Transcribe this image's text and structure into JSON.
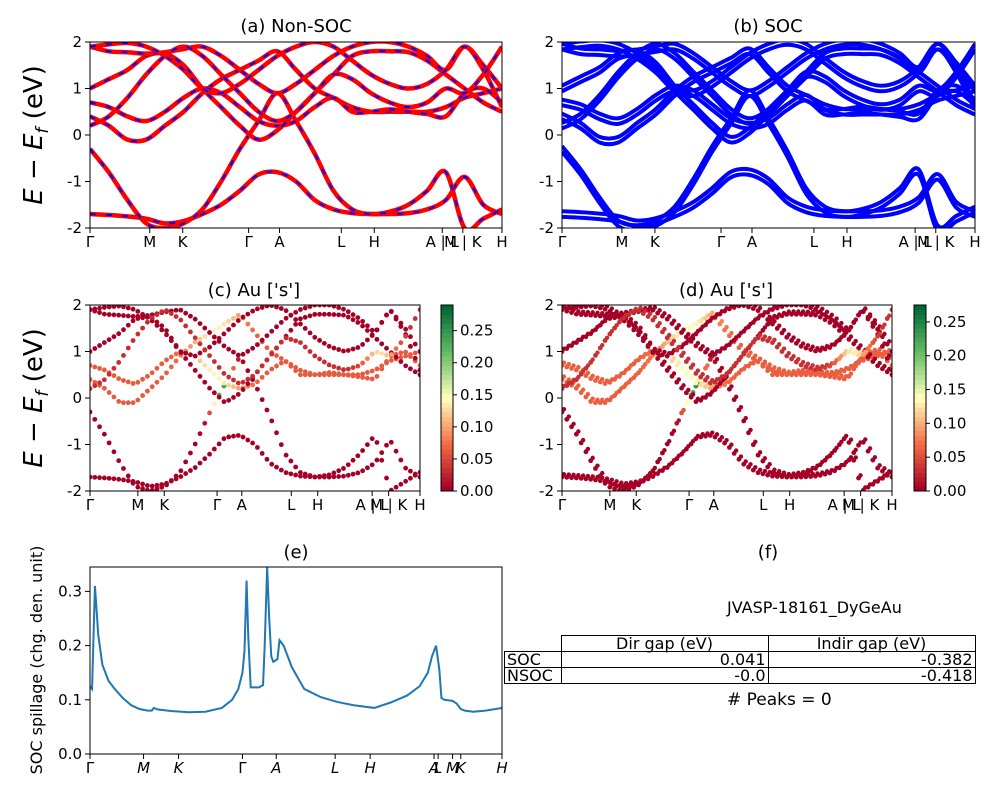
{
  "figure": {
    "ylabel_main": "E − E",
    "ylabel_sub": "f",
    "ylabel_unit": " (eV)",
    "ylabel_e": "SOC spillage (chg. den. unit)"
  },
  "kpath": [
    "Γ",
    "M",
    "K",
    "Γ",
    "A",
    "L",
    "H",
    "A | L",
    "M | K",
    "H"
  ],
  "kpath_positions": [
    0,
    0.145,
    0.225,
    0.385,
    0.46,
    0.61,
    0.69,
    0.855,
    0.905,
    1.0
  ],
  "chart_data": [
    {
      "type": "line",
      "panel": "a",
      "title": "(a) Non-SOC",
      "ylim": [
        -2,
        2
      ],
      "yticks": [
        -2,
        -1,
        0,
        1,
        2
      ],
      "series": [
        {
          "color": "#ff0000",
          "style": "solid",
          "bands": [
            [
              -1.7,
              -1.72,
              -1.75,
              -1.8,
              -1.9,
              -1.85,
              -1.7,
              -1.5,
              -1.2,
              -0.85,
              -0.8,
              -1.0,
              -1.4,
              -1.6,
              -1.68,
              -1.7,
              -1.7,
              -1.68,
              -1.6,
              -1.4,
              -0.9,
              -1.5,
              -1.7
            ],
            [
              -0.3,
              -0.8,
              -1.4,
              -1.9,
              -2.0,
              -1.9,
              -1.6,
              -1.0,
              -0.3,
              0.3,
              0.9,
              0.3,
              -0.4,
              -1.2,
              -1.6,
              -1.7,
              -1.65,
              -1.5,
              -1.2,
              -0.8,
              -2.0,
              -1.8,
              -1.6
            ],
            [
              0.4,
              0.2,
              -0.1,
              -0.1,
              0.2,
              0.5,
              0.9,
              1.2,
              1.4,
              1.6,
              1.8,
              1.4,
              1.0,
              0.8,
              0.6,
              0.5,
              0.5,
              0.5,
              0.5,
              0.6,
              0.8,
              0.9,
              1.0
            ],
            [
              0.7,
              0.6,
              0.4,
              0.3,
              0.5,
              0.8,
              1.0,
              0.9,
              0.6,
              0.3,
              0.2,
              0.3,
              0.6,
              0.8,
              0.5,
              0.5,
              0.55,
              0.5,
              0.45,
              0.4,
              0.9,
              1.0,
              0.7
            ],
            [
              1.0,
              1.2,
              1.4,
              1.7,
              1.75,
              1.5,
              1.0,
              0.6,
              0.2,
              -0.1,
              0.1,
              0.5,
              0.9,
              1.3,
              1.7,
              1.8,
              1.8,
              1.78,
              1.6,
              1.3,
              1.0,
              0.7,
              0.5
            ],
            [
              1.9,
              1.8,
              1.78,
              1.75,
              1.78,
              1.85,
              1.9,
              1.7,
              1.4,
              1.1,
              0.9,
              1.1,
              1.4,
              1.7,
              1.9,
              2.0,
              2.0,
              1.9,
              1.7,
              1.4,
              1.9,
              1.5,
              1.0
            ],
            [
              1.9,
              1.95,
              1.98,
              1.9,
              1.7,
              1.4,
              1.0,
              0.9,
              1.1,
              1.4,
              1.7,
              1.9,
              2.0,
              1.9,
              1.6,
              1.3,
              1.1,
              1.0,
              1.1,
              1.4,
              1.9,
              1.4,
              0.6
            ],
            [
              0.2,
              0.4,
              0.8,
              1.3,
              1.7,
              1.9,
              1.7,
              1.3,
              0.9,
              0.5,
              0.3,
              0.5,
              0.9,
              1.3,
              1.2,
              0.9,
              0.7,
              0.6,
              0.7,
              1.0,
              0.9,
              1.3,
              1.9
            ]
          ]
        },
        {
          "color": "#0000ff",
          "style": "dashed",
          "bands": "same"
        }
      ]
    },
    {
      "type": "line",
      "panel": "b",
      "title": "(b) SOC",
      "ylim": [
        -2,
        2
      ],
      "yticks": [
        -2,
        -1,
        0,
        1,
        2
      ],
      "series": [
        {
          "color": "#0000ff",
          "style": "solid",
          "bands": "split"
        }
      ]
    },
    {
      "type": "scatter",
      "panel": "c",
      "title": "(c)  Au ['s']",
      "ylim": [
        -2,
        2
      ],
      "yticks": [
        -2,
        -1,
        0,
        1,
        2
      ],
      "colorbar": {
        "ticks": [
          0.0,
          0.05,
          0.1,
          0.15,
          0.2,
          0.25
        ],
        "labels": [
          "0.00",
          "0.05",
          "0.10",
          "0.15",
          "0.20",
          "0.25"
        ],
        "max": 0.29,
        "colormap": "RdYlGn"
      }
    },
    {
      "type": "scatter",
      "panel": "d",
      "title": "(d) Au ['s']",
      "ylim": [
        -2,
        2
      ],
      "yticks": [
        -2,
        -1,
        0,
        1,
        2
      ],
      "colorbar": {
        "ticks": [
          0.0,
          0.05,
          0.1,
          0.15,
          0.2,
          0.25
        ],
        "labels": [
          "0.00",
          "0.05",
          "0.10",
          "0.15",
          "0.20",
          "0.25"
        ],
        "max": 0.275,
        "colormap": "RdYlGn"
      }
    },
    {
      "type": "line",
      "panel": "e",
      "title": "(e)",
      "ylabel": "SOC spillage (chg. den. unit)",
      "ylim": [
        0.0,
        0.345
      ],
      "yticks": [
        0.0,
        0.1,
        0.2,
        0.3
      ],
      "ytick_labels": [
        "0.0",
        "0.1",
        "0.2",
        "0.3"
      ],
      "xtick_labels": [
        "Γ",
        "M",
        "K",
        "Γ",
        "A",
        "L",
        "H",
        "A",
        "L",
        "M",
        "K",
        "H"
      ],
      "series": [
        {
          "color": "#1f77b4",
          "x": [
            0.0,
            0.005,
            0.012,
            0.02,
            0.03,
            0.045,
            0.06,
            0.08,
            0.1,
            0.12,
            0.14,
            0.15,
            0.155,
            0.165,
            0.2,
            0.24,
            0.28,
            0.32,
            0.345,
            0.36,
            0.37,
            0.375,
            0.38,
            0.384,
            0.39,
            0.41,
            0.42,
            0.424,
            0.43,
            0.435,
            0.44,
            0.445,
            0.455,
            0.46,
            0.47,
            0.49,
            0.52,
            0.56,
            0.6,
            0.64,
            0.69,
            0.73,
            0.77,
            0.8,
            0.82,
            0.83,
            0.84,
            0.848,
            0.853,
            0.856,
            0.86,
            0.88,
            0.89,
            0.9,
            0.91,
            0.93,
            0.96,
            1.0
          ],
          "y": [
            0.125,
            0.12,
            0.31,
            0.22,
            0.165,
            0.135,
            0.12,
            0.103,
            0.09,
            0.083,
            0.08,
            0.08,
            0.085,
            0.082,
            0.079,
            0.077,
            0.078,
            0.085,
            0.1,
            0.12,
            0.15,
            0.19,
            0.32,
            0.22,
            0.123,
            0.123,
            0.127,
            0.2,
            0.345,
            0.25,
            0.18,
            0.17,
            0.175,
            0.21,
            0.2,
            0.16,
            0.12,
            0.105,
            0.096,
            0.09,
            0.085,
            0.095,
            0.108,
            0.125,
            0.15,
            0.18,
            0.2,
            0.155,
            0.103,
            0.102,
            0.1,
            0.098,
            0.093,
            0.083,
            0.08,
            0.078,
            0.08,
            0.085
          ]
        }
      ]
    },
    {
      "type": "table",
      "panel": "f",
      "title": "(f)",
      "subtitle": "JVASP-18161_DyGeAu",
      "columns": [
        "Dir gap (eV)",
        "Indir gap (eV)"
      ],
      "rows": [
        {
          "label": "SOC",
          "values": [
            "0.041",
            "-0.382"
          ]
        },
        {
          "label": "NSOC",
          "values": [
            "-0.0",
            "-0.418"
          ]
        }
      ],
      "footer": "# Peaks = 0"
    }
  ]
}
